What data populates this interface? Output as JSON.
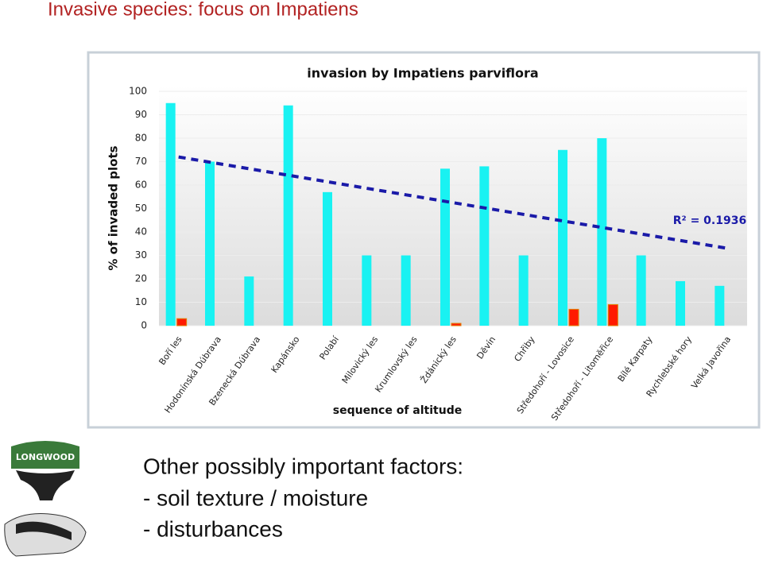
{
  "slide_title": "Invasive species: focus on Impatiens",
  "body": [
    "Other possibly important factors:",
    "- soil texture / moisture",
    "- disturbances"
  ],
  "logo_text": "LONGWOOD",
  "chart_data": {
    "type": "bar",
    "title": "invasion by Impatiens parviflora",
    "ylabel": "% of invaded plots",
    "xlabel": "sequence of altitude",
    "categories": [
      "Boří les",
      "Hodonínská Dúbrava",
      "Bzenecká Dúbrava",
      "Kapánsko",
      "Polabí",
      "Milovický les",
      "Krumlovský les",
      "Ždánický les",
      "Děvín",
      "Chřiby",
      "Středohoří - Lovosice",
      "Středohoří - Litoměřice",
      "Bílé Karpaty",
      "Rychlebské hory",
      "Velká Javořina"
    ],
    "series": [
      {
        "color": "#19f2f2",
        "values": [
          95,
          70,
          21,
          94,
          57,
          30,
          30,
          67,
          68,
          30,
          75,
          80,
          30,
          19,
          17
        ]
      },
      {
        "color": "#ff1a00",
        "values": [
          3,
          0,
          0,
          0,
          0,
          0,
          0,
          1,
          0,
          0,
          7,
          9,
          0,
          0,
          0
        ]
      }
    ],
    "trendline": [
      72,
      33
    ],
    "trend_color": "#1a1aa8",
    "annotation": "R² = 0.1936",
    "ylim": [
      0,
      100
    ],
    "yticks": [
      0,
      10,
      20,
      30,
      40,
      50,
      60,
      70,
      80,
      90,
      100
    ],
    "grid": true
  }
}
